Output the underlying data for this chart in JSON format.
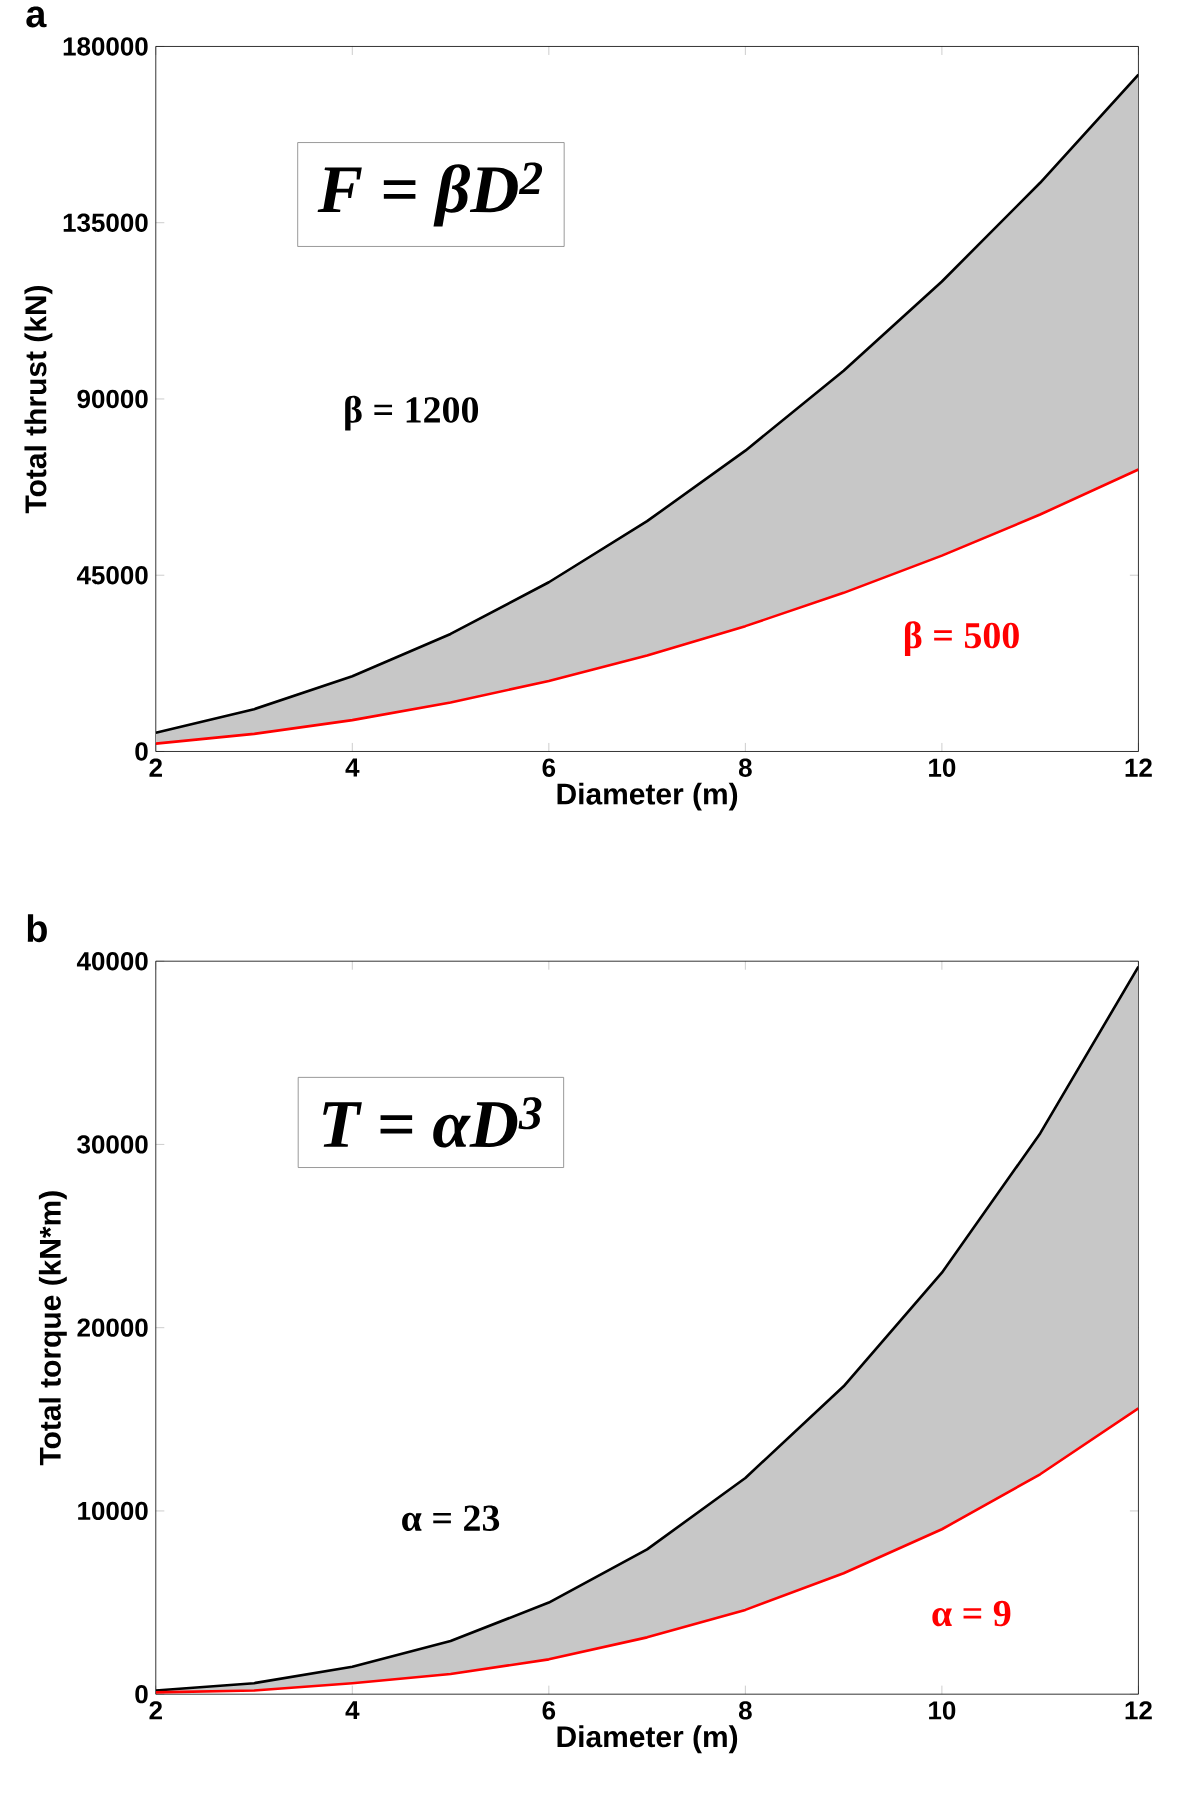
{
  "chart_data": [
    {
      "type": "line",
      "title": "a",
      "xlabel": "Diameter (m)",
      "ylabel": "Total thrust (kN)",
      "xlim": [
        2,
        12
      ],
      "xticks": [
        2,
        4,
        6,
        8,
        10,
        12
      ],
      "ylim": [
        0,
        180000
      ],
      "yticks": [
        0,
        45000,
        90000,
        135000,
        180000
      ],
      "x": [
        2,
        3,
        4,
        5,
        6,
        7,
        8,
        9,
        10,
        11,
        12
      ],
      "series": [
        {
          "name": "β = 1200",
          "color": "#000000",
          "values": [
            4800,
            10800,
            19200,
            30000,
            43200,
            58800,
            76800,
            97200,
            120000,
            145200,
            172800
          ],
          "lower": [
            2000,
            4500,
            8000,
            12500,
            18000,
            24500,
            32000,
            40500,
            50000,
            60500,
            72000
          ],
          "upper": [
            4800,
            10800,
            19200,
            30000,
            43200,
            58800,
            76800,
            97200,
            120000,
            145200,
            172800
          ]
        },
        {
          "name": "β = 500",
          "color": "#ff0000",
          "values": [
            2000,
            4500,
            8000,
            12500,
            18000,
            24500,
            32000,
            40500,
            50000,
            60500,
            72000
          ]
        }
      ],
      "annotations": [
        "F = βD$^{2}$"
      ],
      "marker": "none",
      "line_style": "solid",
      "grid": false,
      "legend": false
    },
    {
      "type": "line",
      "title": "b",
      "xlabel": "Diameter (m)",
      "ylabel": "Total torque (kN*m)",
      "xlim": [
        2,
        12
      ],
      "xticks": [
        2,
        4,
        6,
        8,
        10,
        12
      ],
      "ylim": [
        0,
        40000
      ],
      "yticks": [
        0,
        10000,
        20000,
        30000,
        40000
      ],
      "x": [
        2,
        3,
        4,
        5,
        6,
        7,
        8,
        9,
        10,
        11,
        12
      ],
      "series": [
        {
          "name": "α = 23",
          "color": "#000000",
          "values": [
            200,
            600,
            1500,
            2900,
            5000,
            7900,
            11800,
            16800,
            23000,
            30600,
            39700
          ],
          "lower": [
            100,
            200,
            600,
            1100,
            1900,
            3100,
            4600,
            6600,
            9000,
            12000,
            15600
          ],
          "upper": [
            200,
            600,
            1500,
            2900,
            5000,
            7900,
            11800,
            16800,
            23000,
            30600,
            39700
          ]
        },
        {
          "name": "α = 9",
          "color": "#ff0000",
          "values": [
            100,
            200,
            600,
            1100,
            1900,
            3100,
            4600,
            6600,
            9000,
            12000,
            15600
          ]
        }
      ],
      "annotations": [
        "T = αD$^{3}$"
      ],
      "marker": "none",
      "line_style": "solid",
      "grid": false,
      "legend": false
    }
  ]
}
